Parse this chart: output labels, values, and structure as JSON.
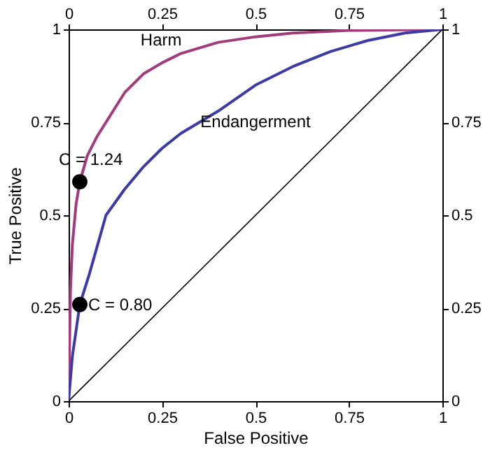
{
  "chart_data": {
    "type": "line",
    "xlabel": "False Positive",
    "ylabel": "True Positive",
    "xlim": [
      0,
      1
    ],
    "ylim": [
      0,
      1
    ],
    "xticks": [
      0,
      0.25,
      0.5,
      0.75,
      1
    ],
    "yticks": [
      0,
      0.25,
      0.5,
      0.75,
      1
    ],
    "x2lim": [
      0,
      1
    ],
    "x2ticks": [
      0,
      0.25,
      0.5,
      0.75,
      1
    ],
    "y2lim": [
      0,
      1
    ],
    "y2ticks": [
      0,
      0.25,
      0.5,
      0.75,
      1
    ],
    "grid": false,
    "line_style": "solid",
    "series": [
      {
        "name": "Harm",
        "color": "#a33a7c",
        "x": [
          0,
          0.005,
          0.01,
          0.02,
          0.03,
          0.05,
          0.075,
          0.1,
          0.15,
          0.2,
          0.25,
          0.3,
          0.4,
          0.5,
          0.6,
          0.75,
          1
        ],
        "values": [
          0,
          0.3,
          0.42,
          0.53,
          0.59,
          0.66,
          0.71,
          0.75,
          0.83,
          0.88,
          0.91,
          0.935,
          0.965,
          0.98,
          0.99,
          0.997,
          1
        ]
      },
      {
        "name": "Endangerment",
        "color": "#3c3aa6",
        "x": [
          0,
          0.01,
          0.03,
          0.055,
          0.1,
          0.15,
          0.2,
          0.25,
          0.3,
          0.35,
          0.4,
          0.5,
          0.6,
          0.7,
          0.8,
          0.9,
          1
        ],
        "values": [
          0,
          0.12,
          0.26,
          0.34,
          0.5,
          0.57,
          0.63,
          0.68,
          0.72,
          0.75,
          0.78,
          0.85,
          0.9,
          0.94,
          0.97,
          0.99,
          1
        ]
      },
      {
        "color": "#000000",
        "x": [
          0,
          1
        ],
        "values": [
          0,
          1
        ]
      },
      {
        "type": "scatter",
        "marker": "circle",
        "color": "#000000",
        "x": [
          0.03,
          0.03
        ],
        "values": [
          0.59,
          0.26
        ]
      }
    ],
    "annotations": [
      {
        "text": "C = 1.24",
        "x": 0.03,
        "y": 0.59
      },
      {
        "text": "C = 0.80",
        "x": 0.03,
        "y": 0.26
      }
    ]
  }
}
